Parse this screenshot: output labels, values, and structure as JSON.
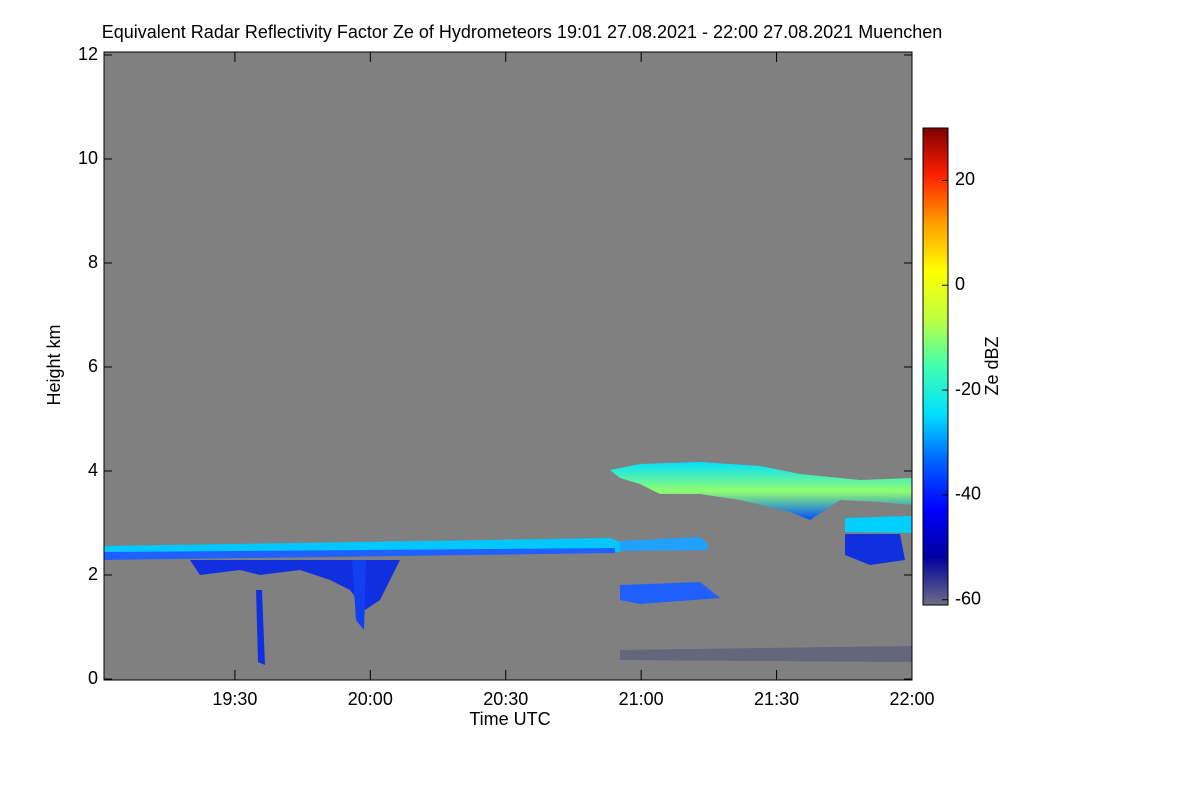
{
  "chart_data": {
    "type": "heatmap",
    "title": "Equivalent Radar Reflectivity Factor Ze of Hydrometeors   19:01 27.08.2021 - 22:00 27.08.2021 Muenchen",
    "x_label": "Time UTC",
    "y_label": "Height km",
    "colorbar_label": "Ze dBZ",
    "background": "#808080",
    "xlim": [
      19.0167,
      22
    ],
    "xticks": [
      {
        "value": 19.5,
        "label": "19:30"
      },
      {
        "value": 20,
        "label": "20:00"
      },
      {
        "value": 20.5,
        "label": "20:30"
      },
      {
        "value": 21,
        "label": "21:00"
      },
      {
        "value": 21.5,
        "label": "21:30"
      },
      {
        "value": 22,
        "label": "22:00"
      }
    ],
    "ylim": [
      0,
      12
    ],
    "yticks": [
      0,
      2,
      4,
      6,
      8,
      10,
      12
    ],
    "clim": [
      -61,
      30
    ],
    "cticks": [
      -60,
      -40,
      -20,
      0,
      20
    ],
    "colormap": [
      "#6e6e86",
      "#0000a0",
      "#0000ff",
      "#0060ff",
      "#00e0ff",
      "#40ffb0",
      "#c0ff40",
      "#ffff00",
      "#ffa000",
      "#ff2000",
      "#800000"
    ]
  }
}
